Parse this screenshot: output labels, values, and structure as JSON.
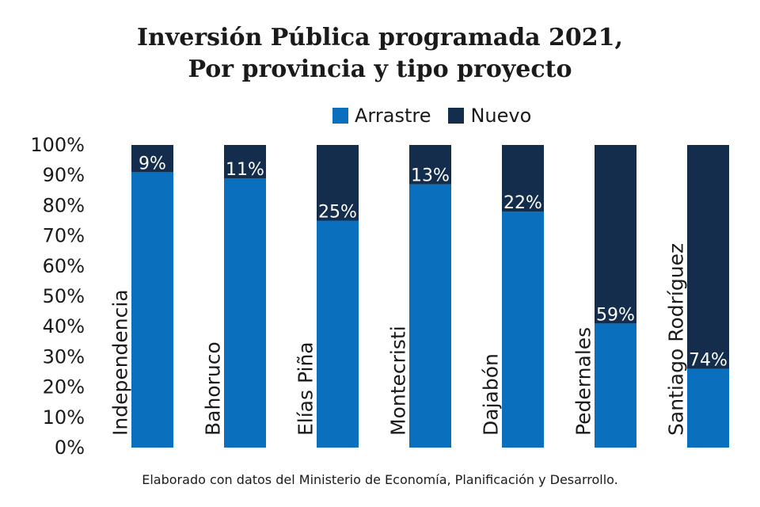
{
  "chart_data": {
    "type": "bar",
    "stacked": true,
    "title_lines": [
      "Inversión Pública programada 2021,",
      "Por provincia y tipo proyecto"
    ],
    "categories": [
      "Independencia",
      "Bahoruco",
      "Elías Piña",
      "Montecristi",
      "Dajabón",
      "Pedernales",
      "Santiago Rodríguez"
    ],
    "series": [
      {
        "name": "Arrastre",
        "color": "#0a70bd",
        "values": [
          91,
          89,
          75,
          87,
          78,
          41,
          26
        ]
      },
      {
        "name": "Nuevo",
        "color": "#142d4c",
        "values": [
          9,
          11,
          25,
          13,
          22,
          59,
          74
        ]
      }
    ],
    "data_labels": [
      "9%",
      "11%",
      "25%",
      "13%",
      "22%",
      "59%",
      "74%"
    ],
    "y_ticks": [
      "0%",
      "10%",
      "20%",
      "30%",
      "40%",
      "50%",
      "60%",
      "70%",
      "80%",
      "90%",
      "100%"
    ],
    "ylim": [
      0,
      100
    ],
    "legend_position": "top",
    "grid": false,
    "source_note": "Elaborado con datos del Ministerio de Economía, Planificación y Desarrollo."
  }
}
